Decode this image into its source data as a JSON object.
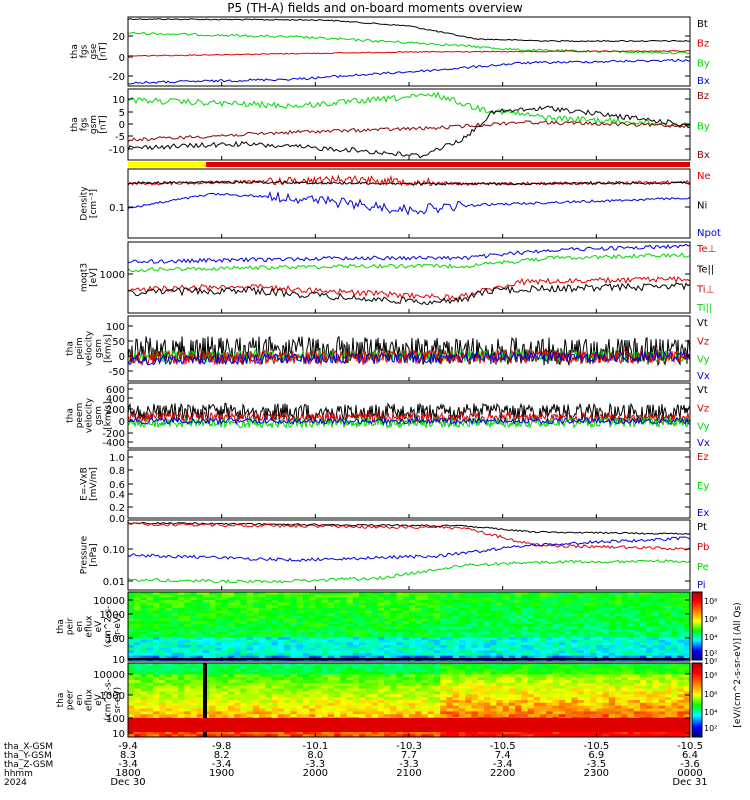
{
  "title": "P5 (TH-A) fields and on-board moments overview",
  "colors": {
    "black": "#000000",
    "red": "#e00000",
    "green": "#00d800",
    "blue": "#0000e0",
    "darkred": "#8b0000",
    "yellow": "#ffff00"
  },
  "chart_data": [
    {
      "type": "line",
      "id": "fgs_gse",
      "ylabel": [
        "tha",
        "fgs",
        "gse",
        "[nT]"
      ],
      "yticks": [
        "20",
        "0",
        "-20"
      ],
      "ylim": [
        -28,
        40
      ],
      "legend": [
        {
          "name": "Bt",
          "color": "#000000"
        },
        {
          "name": "Bz",
          "color": "#e00000"
        },
        {
          "name": "By",
          "color": "#00d800"
        },
        {
          "name": "Bx",
          "color": "#0000e0"
        }
      ]
    },
    {
      "type": "line",
      "id": "fgs_gsm",
      "ylabel": [
        "tha",
        "fgs",
        "gsm",
        "[nT]"
      ],
      "yticks": [
        "10",
        "5",
        "0",
        "-5",
        "-10"
      ],
      "ylim": [
        -14,
        14
      ],
      "legend": [
        {
          "name": "Bz",
          "color": "#8b0000"
        },
        {
          "name": "By",
          "color": "#00d800"
        },
        {
          "name": "Bx",
          "color": "#8b0000"
        }
      ]
    },
    {
      "type": "line",
      "id": "density",
      "ylabel": [
        "Density",
        "[cm⁻³]"
      ],
      "yticks": [
        "0.1"
      ],
      "scale": "log",
      "legend": [
        {
          "name": "Ne",
          "color": "#e00000"
        },
        {
          "name": "Ni",
          "color": "#000000"
        },
        {
          "name": "Npot",
          "color": "#0000e0"
        }
      ]
    },
    {
      "type": "line",
      "id": "temperature",
      "ylabel": [
        "moqt3",
        "[eV]"
      ],
      "yticks": [
        "1000"
      ],
      "scale": "log",
      "legend": [
        {
          "name": "Te⊥",
          "color": "#e00000"
        },
        {
          "name": "Te||",
          "color": "#000000"
        },
        {
          "name": "Ti⊥",
          "color": "#e00000"
        },
        {
          "name": "Ti||",
          "color": "#00d800"
        }
      ]
    },
    {
      "type": "line",
      "id": "peim_velocity",
      "ylabel": [
        "tha",
        "peim",
        "velocity",
        "gsm",
        "[km/s]"
      ],
      "yticks": [
        "100",
        "50",
        "0",
        "-50"
      ],
      "ylim": [
        -70,
        130
      ],
      "legend": [
        {
          "name": "Vt",
          "color": "#000000"
        },
        {
          "name": "Vz",
          "color": "#e00000"
        },
        {
          "name": "Vy",
          "color": "#00d800"
        },
        {
          "name": "Vx",
          "color": "#0000e0"
        }
      ]
    },
    {
      "type": "line",
      "id": "peem_velocity",
      "ylabel": [
        "tha",
        "peem",
        "velocity",
        "gsm",
        "[km/s]"
      ],
      "yticks": [
        "600",
        "400",
        "200",
        "0",
        "-200",
        "-400"
      ],
      "ylim": [
        -520,
        700
      ],
      "legend": [
        {
          "name": "Vt",
          "color": "#000000"
        },
        {
          "name": "Vz",
          "color": "#e00000"
        },
        {
          "name": "Vy",
          "color": "#00d800"
        },
        {
          "name": "Vx",
          "color": "#0000e0"
        }
      ]
    },
    {
      "type": "line",
      "id": "efield",
      "ylabel": [
        "E=-VxB",
        "[mV/m]"
      ],
      "yticks": [
        "1.0",
        "0.8",
        "0.6",
        "0.4",
        "0.2",
        "0.0"
      ],
      "ylim": [
        0,
        1
      ],
      "legend": [
        {
          "name": "Ez",
          "color": "#e00000"
        },
        {
          "name": "Ey",
          "color": "#00d800"
        },
        {
          "name": "Ex",
          "color": "#0000e0"
        }
      ]
    },
    {
      "type": "line",
      "id": "pressure",
      "ylabel": [
        "Pressure",
        "[nPa]"
      ],
      "yticks": [
        "0.10",
        "0.01"
      ],
      "scale": "log",
      "legend": [
        {
          "name": "Pt",
          "color": "#000000"
        },
        {
          "name": "Pb",
          "color": "#e00000"
        },
        {
          "name": "Pe",
          "color": "#00d800"
        },
        {
          "name": "Pi",
          "color": "#0000e0"
        }
      ]
    },
    {
      "type": "heatmap",
      "id": "peir_eflux",
      "ylabel": [
        "tha",
        "peir",
        "en",
        "eflux",
        "eV",
        "(cm^2-s-",
        "sr-eV)"
      ],
      "yticks": [
        "10000",
        "1000",
        "100",
        "10"
      ],
      "scale": "log"
    },
    {
      "type": "heatmap",
      "id": "peer_eflux",
      "ylabel": [
        "tha",
        "peer",
        "en",
        "eflux",
        "eV",
        "(cm^2-s-",
        "sr-eV)"
      ],
      "yticks": [
        "10000",
        "1000",
        "100",
        "10"
      ],
      "scale": "log"
    }
  ],
  "colorbar": {
    "label": "[eV/(cm^2-s-sr-eV)] (All Qs)",
    "upper_ticks": [
      "10⁸",
      "10⁶",
      "10⁴",
      "10²",
      "10⁰"
    ],
    "lower_ticks": [
      "10⁸",
      "10⁶",
      "10⁴",
      "10²"
    ]
  },
  "x_axis": {
    "row_labels": [
      "tha_X-GSM",
      "tha_Y-GSM",
      "tha_Z-GSM",
      "hhmm",
      "2024"
    ],
    "columns": [
      {
        "x": "-9.4",
        "y": "8.3",
        "z": "-3.4",
        "hhmm": "1800",
        "date": "Dec 30"
      },
      {
        "x": "-9.8",
        "y": "8.2",
        "z": "-3.4",
        "hhmm": "1900",
        "date": ""
      },
      {
        "x": "-10.1",
        "y": "8.0",
        "z": "-3.3",
        "hhmm": "2000",
        "date": ""
      },
      {
        "x": "-10.3",
        "y": "7.7",
        "z": "-3.3",
        "hhmm": "2100",
        "date": ""
      },
      {
        "x": "-10.5",
        "y": "7.4",
        "z": "-3.4",
        "hhmm": "2200",
        "date": ""
      },
      {
        "x": "-10.5",
        "y": "6.9",
        "z": "-3.5",
        "hhmm": "2300",
        "date": ""
      },
      {
        "x": "-10.5",
        "y": "6.4",
        "z": "-3.6",
        "hhmm": "0000",
        "date": "Dec 31"
      }
    ]
  }
}
